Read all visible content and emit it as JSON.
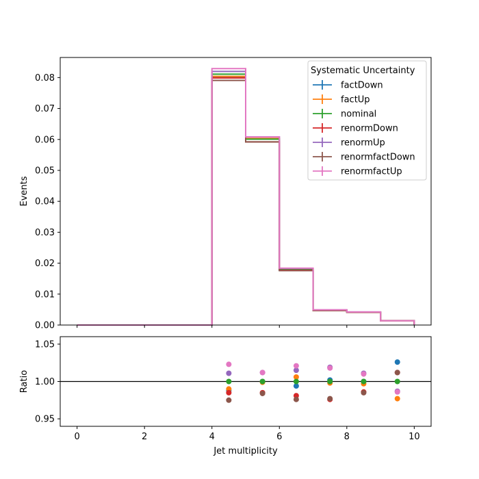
{
  "chart_data": [
    {
      "type": "step",
      "xlabel": "",
      "ylabel": "Events",
      "xlim": [
        -0.5,
        10.5
      ],
      "ylim": [
        0,
        0.0865
      ],
      "x_ticks": [
        0,
        2,
        4,
        6,
        8,
        10
      ],
      "y_ticks": [
        0.0,
        0.01,
        0.02,
        0.03,
        0.04,
        0.05,
        0.06,
        0.07,
        0.08
      ],
      "y_tick_labels": [
        "0.00",
        "0.01",
        "0.02",
        "0.03",
        "0.04",
        "0.05",
        "0.06",
        "0.07",
        "0.08"
      ],
      "bin_edges": [
        0,
        1,
        2,
        3,
        4,
        5,
        6,
        7,
        8,
        9,
        10
      ],
      "legend_title": "Systematic Uncertainty",
      "legend_position": "top-right",
      "series": [
        {
          "name": "factDown",
          "color": "#1f77b4",
          "values": [
            0,
            0,
            0,
            0,
            0.08,
            0.0602,
            0.0177,
            0.00485,
            0.00418,
            0.00145
          ]
        },
        {
          "name": "factUp",
          "color": "#ff7f0e",
          "values": [
            0,
            0,
            0,
            0,
            0.0804,
            0.0603,
            0.0182,
            0.00478,
            0.00416,
            0.00138
          ]
        },
        {
          "name": "nominal",
          "color": "#2ca02c",
          "values": [
            0,
            0,
            0,
            0,
            0.0811,
            0.0601,
            0.018,
            0.00482,
            0.00418,
            0.00141
          ]
        },
        {
          "name": "renormDown",
          "color": "#d62728",
          "values": [
            0,
            0,
            0,
            0,
            0.0799,
            0.0592,
            0.0177,
            0.0047,
            0.00412,
            0.00143
          ]
        },
        {
          "name": "renormUp",
          "color": "#9467bd",
          "values": [
            0,
            0,
            0,
            0,
            0.082,
            0.0608,
            0.0183,
            0.0049,
            0.00422,
            0.00142
          ]
        },
        {
          "name": "renormfactDown",
          "color": "#8c564b",
          "values": [
            0,
            0,
            0,
            0,
            0.0791,
            0.0592,
            0.0176,
            0.00471,
            0.00412,
            0.00143
          ]
        },
        {
          "name": "renormfactUp",
          "color": "#e377c2",
          "values": [
            0,
            0,
            0,
            0,
            0.0829,
            0.0608,
            0.0184,
            0.00491,
            0.00422,
            0.00139
          ]
        }
      ]
    },
    {
      "type": "scatter",
      "xlabel": "Jet multiplicity",
      "ylabel": "Ratio",
      "xlim": [
        -0.5,
        10.5
      ],
      "ylim": [
        0.94,
        1.06
      ],
      "x_ticks": [
        0,
        2,
        4,
        6,
        8,
        10
      ],
      "x_tick_labels": [
        "0",
        "2",
        "4",
        "6",
        "8",
        "10"
      ],
      "y_ticks": [
        0.95,
        1.0,
        1.05
      ],
      "y_tick_labels": [
        "0.95",
        "1.00",
        "1.05"
      ],
      "reference_line": 1.0,
      "x": [
        4.5,
        5.5,
        6.5,
        7.5,
        8.5,
        9.5
      ],
      "series": [
        {
          "name": "factDown",
          "color": "#1f77b4",
          "values": [
            0.988,
            1.0,
            0.994,
            1.002,
            1.0,
            1.026
          ]
        },
        {
          "name": "factUp",
          "color": "#ff7f0e",
          "values": [
            0.99,
            0.999,
            1.006,
            0.998,
            0.997,
            0.977
          ]
        },
        {
          "name": "nominal",
          "color": "#2ca02c",
          "values": [
            1.0,
            1.0,
            1.0,
            1.0,
            1.0,
            1.0
          ]
        },
        {
          "name": "renormDown",
          "color": "#d62728",
          "values": [
            0.985,
            0.985,
            0.981,
            0.976,
            0.986,
            1.012
          ]
        },
        {
          "name": "renormUp",
          "color": "#9467bd",
          "values": [
            1.011,
            1.012,
            1.015,
            1.019,
            1.011,
            0.987
          ]
        },
        {
          "name": "renormfactDown",
          "color": "#8c564b",
          "values": [
            0.975,
            0.984,
            0.976,
            0.977,
            0.985,
            1.012
          ]
        },
        {
          "name": "renormfactUp",
          "color": "#e377c2",
          "values": [
            1.023,
            1.012,
            1.021,
            1.018,
            1.01,
            0.986
          ]
        }
      ]
    }
  ]
}
